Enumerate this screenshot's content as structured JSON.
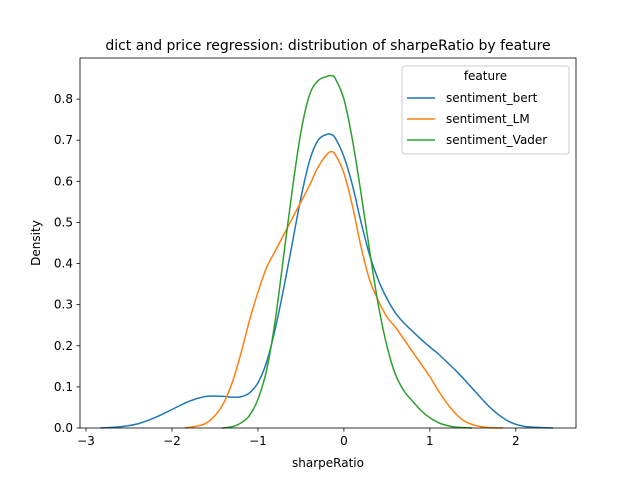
{
  "chart_data": {
    "type": "line",
    "title": "dict and price regression: distribution of sharpeRatio by feature",
    "xlabel": "sharpeRatio",
    "ylabel": "Density",
    "xlim": [
      -3.07,
      2.7
    ],
    "ylim": [
      0,
      0.9
    ],
    "xticks": [
      -3,
      -2,
      -1,
      0,
      1,
      2
    ],
    "yticks": [
      0.0,
      0.1,
      0.2,
      0.3,
      0.4,
      0.5,
      0.6,
      0.7,
      0.8
    ],
    "grid": false,
    "legend": {
      "title": "feature",
      "placement": "top-right",
      "entries": [
        "sentiment_bert",
        "sentiment_LM",
        "sentiment_Vader"
      ]
    },
    "series": [
      {
        "name": "sentiment_bert",
        "color": "#1f77b4",
        "x": [
          -2.83,
          -2.6,
          -2.4,
          -2.2,
          -2.0,
          -1.8,
          -1.6,
          -1.4,
          -1.3,
          -1.2,
          -1.1,
          -1.0,
          -0.9,
          -0.8,
          -0.7,
          -0.6,
          -0.5,
          -0.4,
          -0.3,
          -0.2,
          -0.15,
          -0.1,
          0.0,
          0.1,
          0.2,
          0.3,
          0.4,
          0.5,
          0.6,
          0.7,
          0.8,
          0.9,
          1.0,
          1.1,
          1.2,
          1.3,
          1.4,
          1.5,
          1.6,
          1.7,
          1.8,
          1.9,
          2.0,
          2.1,
          2.2,
          2.3,
          2.43
        ],
        "y": [
          0.0,
          0.003,
          0.01,
          0.025,
          0.045,
          0.065,
          0.077,
          0.077,
          0.075,
          0.076,
          0.085,
          0.11,
          0.16,
          0.24,
          0.34,
          0.45,
          0.56,
          0.65,
          0.7,
          0.714,
          0.714,
          0.705,
          0.66,
          0.59,
          0.5,
          0.42,
          0.36,
          0.315,
          0.28,
          0.255,
          0.235,
          0.215,
          0.197,
          0.18,
          0.16,
          0.14,
          0.118,
          0.095,
          0.072,
          0.05,
          0.032,
          0.018,
          0.009,
          0.004,
          0.002,
          0.001,
          0.0
        ]
      },
      {
        "name": "sentiment_LM",
        "color": "#ff7f0e",
        "x": [
          -1.85,
          -1.7,
          -1.6,
          -1.5,
          -1.4,
          -1.3,
          -1.2,
          -1.1,
          -1.0,
          -0.9,
          -0.8,
          -0.7,
          -0.6,
          -0.5,
          -0.4,
          -0.3,
          -0.2,
          -0.15,
          -0.1,
          0.0,
          0.1,
          0.2,
          0.3,
          0.4,
          0.5,
          0.6,
          0.7,
          0.8,
          0.9,
          1.0,
          1.1,
          1.2,
          1.3,
          1.4,
          1.5,
          1.6,
          1.7,
          1.85
        ],
        "y": [
          0.0,
          0.005,
          0.012,
          0.03,
          0.06,
          0.11,
          0.18,
          0.26,
          0.33,
          0.39,
          0.43,
          0.47,
          0.51,
          0.55,
          0.59,
          0.635,
          0.665,
          0.672,
          0.665,
          0.62,
          0.54,
          0.44,
          0.36,
          0.31,
          0.27,
          0.245,
          0.215,
          0.185,
          0.155,
          0.125,
          0.09,
          0.06,
          0.035,
          0.017,
          0.008,
          0.003,
          0.001,
          0.0
        ]
      },
      {
        "name": "sentiment_Vader",
        "color": "#2ca02c",
        "x": [
          -1.42,
          -1.3,
          -1.2,
          -1.1,
          -1.0,
          -0.9,
          -0.8,
          -0.7,
          -0.6,
          -0.5,
          -0.4,
          -0.3,
          -0.2,
          -0.15,
          -0.1,
          0.0,
          0.1,
          0.2,
          0.3,
          0.4,
          0.5,
          0.6,
          0.7,
          0.8,
          0.9,
          1.0,
          1.1,
          1.2,
          1.3,
          1.4,
          1.49
        ],
        "y": [
          0.0,
          0.003,
          0.012,
          0.03,
          0.07,
          0.14,
          0.26,
          0.42,
          0.58,
          0.72,
          0.81,
          0.845,
          0.855,
          0.857,
          0.85,
          0.8,
          0.7,
          0.57,
          0.43,
          0.3,
          0.2,
          0.13,
          0.09,
          0.065,
          0.042,
          0.025,
          0.013,
          0.006,
          0.002,
          0.001,
          0.0
        ]
      }
    ]
  }
}
